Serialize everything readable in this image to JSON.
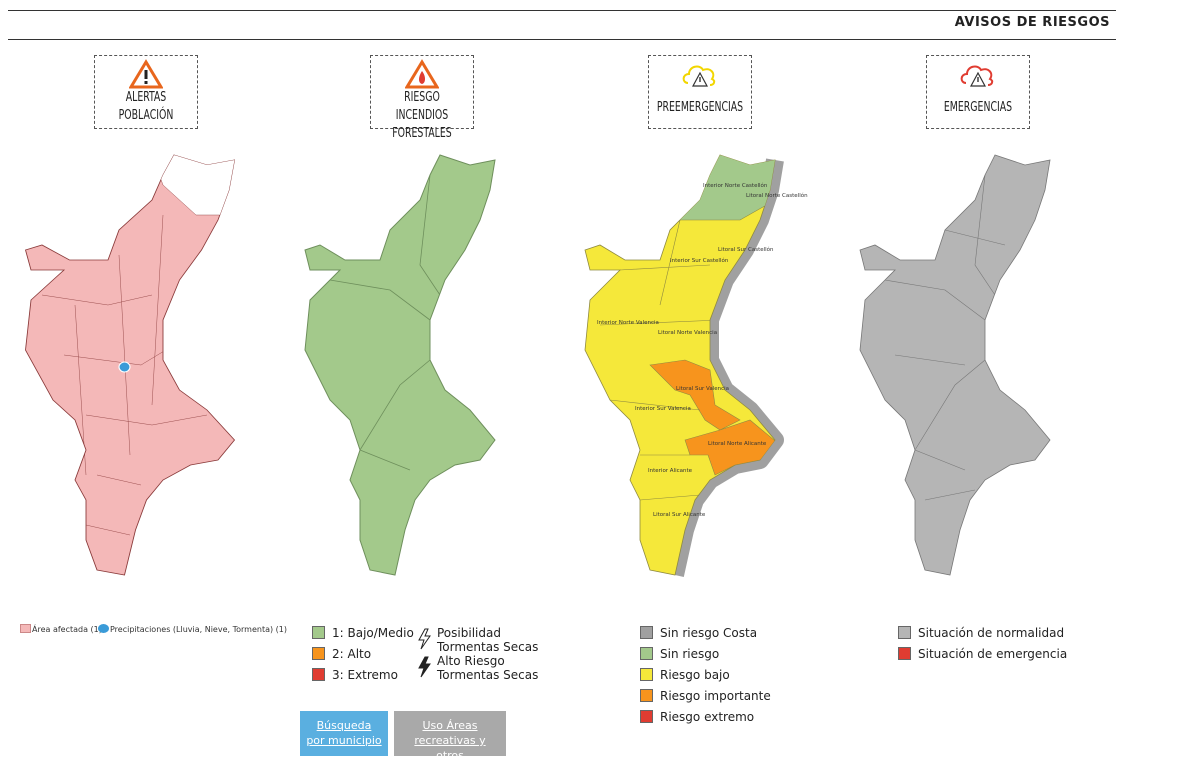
{
  "header": {
    "title": "AVISOS DE RIESGOS"
  },
  "panels": [
    {
      "title": "ALERTAS POBLACIÓN",
      "legend": [
        {
          "label": "Área afectada (1)",
          "color": "#f4b8b8"
        },
        {
          "label": "Precipitaciones (Lluvia, Nieve, Tormenta) (1)",
          "color": "#3a9bd8"
        }
      ]
    },
    {
      "title": "RIESGO INCENDIOS FORESTALES",
      "legend": [
        {
          "label": "1: Bajo/Medio",
          "color": "#a3c98b"
        },
        {
          "label": "2: Alto",
          "color": "#f7941d"
        },
        {
          "label": "3: Extremo",
          "color": "#e03c31"
        }
      ]
    },
    {
      "title": "PREEMERGENCIAS",
      "legend": [
        {
          "label": "Sin riesgo Costa",
          "color": "#a0a0a0"
        },
        {
          "label": "Sin riesgo",
          "color": "#a3c98b"
        },
        {
          "label": "Riesgo bajo",
          "color": "#f5e83a"
        },
        {
          "label": "Riesgo importante",
          "color": "#f7941d"
        },
        {
          "label": "Riesgo extremo",
          "color": "#e03c31"
        }
      ]
    },
    {
      "title": "EMERGENCIAS",
      "legend": [
        {
          "label": "Situación de normalidad",
          "color": "#b5b5b5"
        },
        {
          "label": "Situación de emergencia",
          "color": "#e03c31"
        }
      ]
    }
  ],
  "storm_legend": [
    "Posibilidad Tormentas Secas",
    "Alto Riesgo Tormentas Secas"
  ],
  "map_labels": [
    "Interior Norte Castellón",
    "Litoral Norte Castellón",
    "Interior Sur Castellón",
    "Litoral Sur Castellón",
    "Interior Norte Valencia",
    "Litoral Norte Valencia",
    "Litoral Sur Valencia",
    "Interior Sur Valencia",
    "Litoral Norte Alicante",
    "Interior Alicante",
    "Litoral Sur Alicante"
  ],
  "buttons": [
    "Búsqueda por municipio",
    "Uso Áreas recreativas y otros"
  ]
}
